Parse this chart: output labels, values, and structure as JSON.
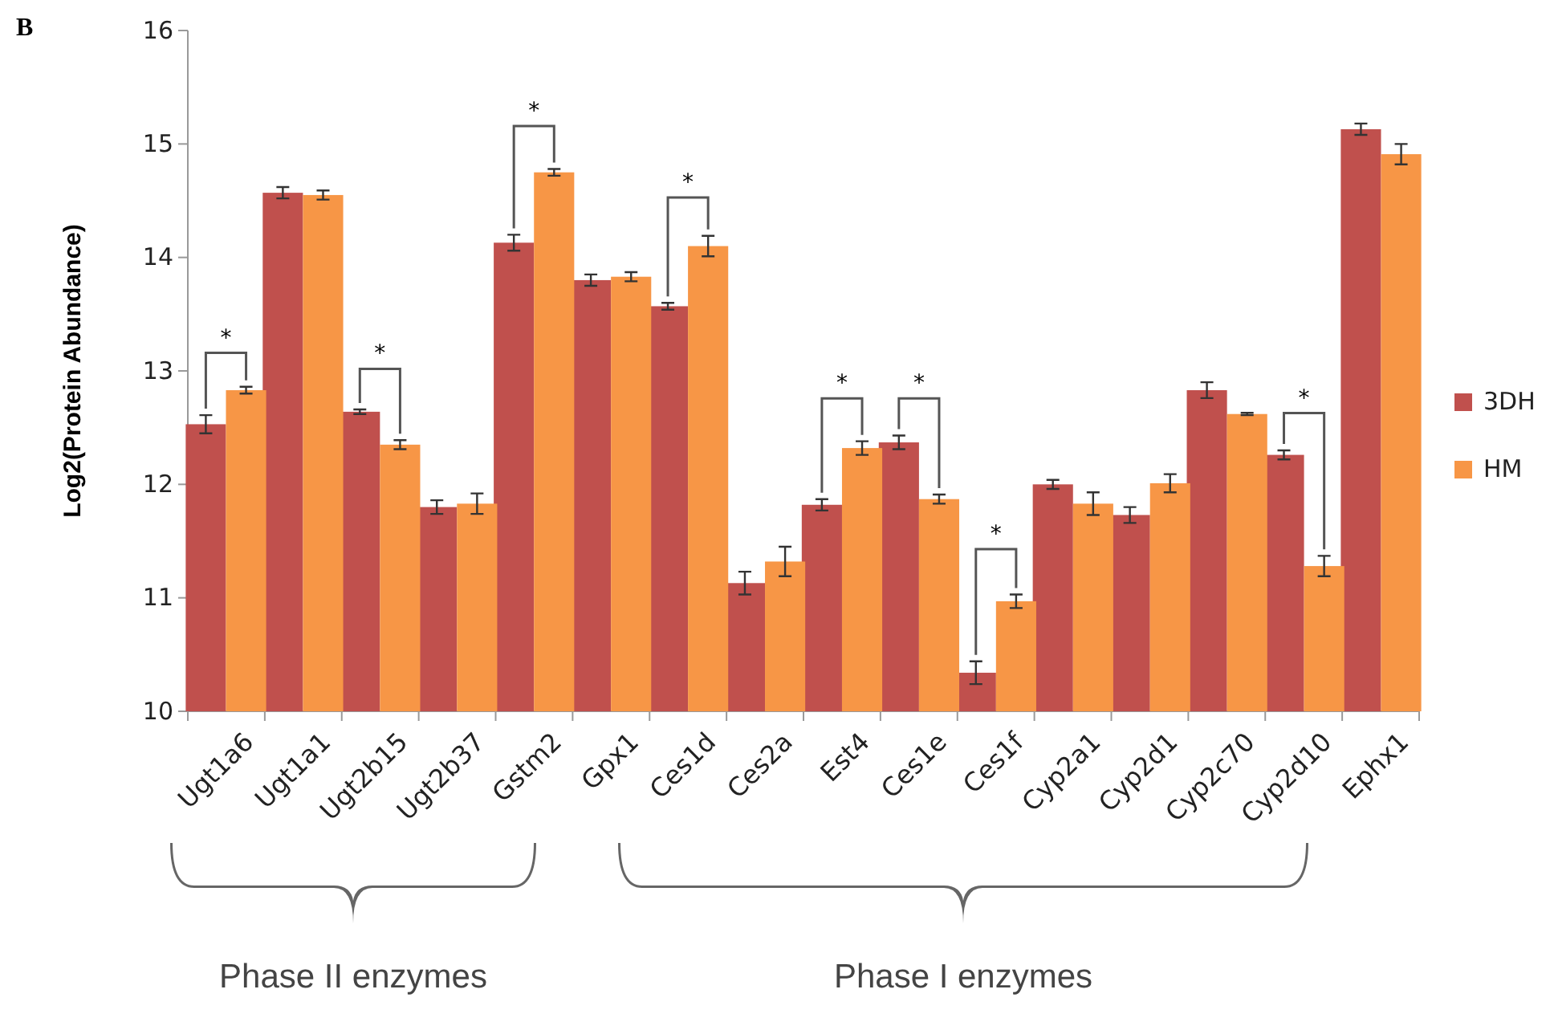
{
  "chart_data": {
    "type": "bar",
    "ylabel": "Log2(Protein Abundance)",
    "categories": [
      "Ugt1a6",
      "Ugt1a1",
      "Ugt2b15",
      "Ugt2b37",
      "Gstm2",
      "Gpx1",
      "Ces1d",
      "Ces2a",
      "Est4",
      "Ces1e",
      "Ces1f",
      "Cyp2a1",
      "Cyp2d1",
      "Cyp2c70",
      "Cyp2d10",
      "Ephx1"
    ],
    "series": [
      {
        "name": "3DH",
        "color": "#c0504d",
        "values": [
          12.53,
          14.57,
          12.64,
          11.8,
          14.13,
          13.8,
          13.57,
          11.13,
          11.82,
          12.37,
          10.34,
          12.0,
          11.73,
          12.83,
          12.26,
          15.13
        ],
        "errors": [
          0.08,
          0.05,
          0.02,
          0.06,
          0.07,
          0.05,
          0.03,
          0.1,
          0.05,
          0.06,
          0.1,
          0.04,
          0.07,
          0.07,
          0.04,
          0.05
        ]
      },
      {
        "name": "HM",
        "color": "#f79646",
        "values": [
          12.83,
          14.55,
          12.35,
          11.83,
          14.75,
          13.83,
          14.1,
          11.32,
          12.32,
          11.87,
          10.97,
          11.83,
          12.01,
          12.62,
          11.28,
          14.91
        ],
        "errors": [
          0.03,
          0.04,
          0.04,
          0.09,
          0.03,
          0.04,
          0.09,
          0.13,
          0.06,
          0.04,
          0.06,
          0.1,
          0.08,
          0.01,
          0.09,
          0.09
        ]
      }
    ],
    "ylim": [
      10,
      16
    ],
    "yticks": [
      10,
      11,
      12,
      13,
      14,
      15,
      16
    ],
    "grid": false,
    "legend": "right",
    "annotations": [
      "B",
      "*",
      "*",
      "*",
      "*",
      "*",
      "*",
      "*",
      "*",
      "Phase II enzymes",
      "Phase I enzymes"
    ]
  }
}
